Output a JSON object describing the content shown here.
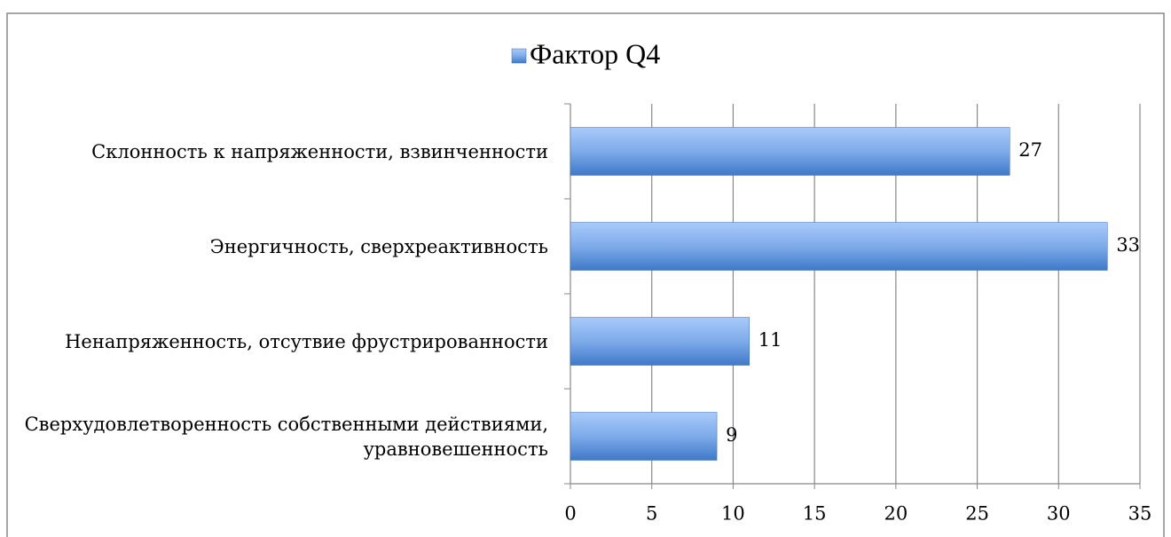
{
  "chart_data": {
    "type": "bar",
    "orientation": "horizontal",
    "categories": [
      "Склонность к напряженности, взвинченности",
      "Энергичность, сверхреактивность",
      "Ненапряженность, отсутвие фрустрированности",
      "Сверхудовлетворенность собственными действиями, уравновешенность"
    ],
    "series": [
      {
        "name": "Фактор Q4",
        "color": "#5b8fd9",
        "values": [
          27,
          33,
          11,
          9
        ]
      }
    ],
    "xlim": [
      0,
      35
    ],
    "xticks": [
      0,
      5,
      10,
      15,
      20,
      25,
      30,
      35
    ],
    "grid": true,
    "legend": "top"
  }
}
